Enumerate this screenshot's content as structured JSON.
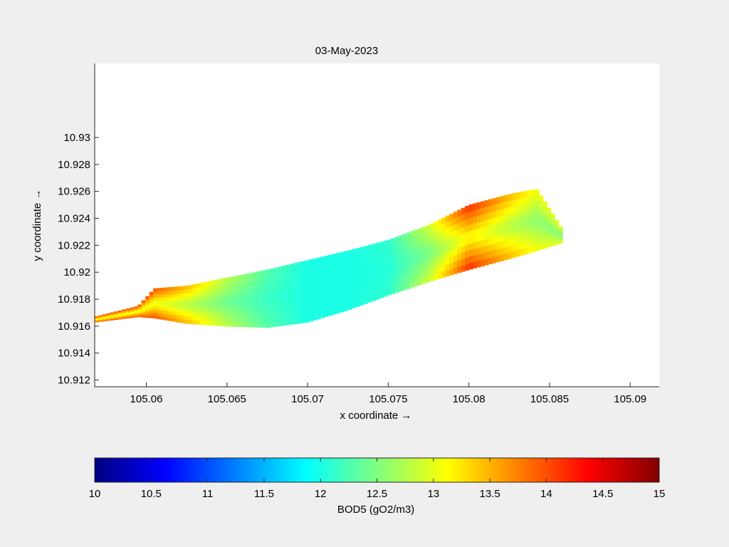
{
  "chart_data": {
    "type": "heatmap",
    "title": "03-May-2023",
    "xlabel": "x coordinate →",
    "ylabel": "y coordinate →",
    "xlim": [
      105.0568,
      105.0918
    ],
    "ylim": [
      10.9115,
      10.9355
    ],
    "x_ticks": [
      {
        "value": 105.06,
        "label": "105.06"
      },
      {
        "value": 105.065,
        "label": "105.065"
      },
      {
        "value": 105.07,
        "label": "105.07"
      },
      {
        "value": 105.075,
        "label": "105.075"
      },
      {
        "value": 105.08,
        "label": "105.08"
      },
      {
        "value": 105.085,
        "label": "105.085"
      },
      {
        "value": 105.09,
        "label": "105.09"
      }
    ],
    "y_ticks": [
      {
        "value": 10.912,
        "label": "10.912"
      },
      {
        "value": 10.914,
        "label": "10.914"
      },
      {
        "value": 10.916,
        "label": "10.916"
      },
      {
        "value": 10.918,
        "label": "10.918"
      },
      {
        "value": 10.92,
        "label": "10.92"
      },
      {
        "value": 10.922,
        "label": "10.922"
      },
      {
        "value": 10.924,
        "label": "10.924"
      },
      {
        "value": 10.926,
        "label": "10.926"
      },
      {
        "value": 10.928,
        "label": "10.928"
      },
      {
        "value": 10.93,
        "label": "10.93"
      }
    ],
    "grid": false,
    "colormap": "jet",
    "colorbar": {
      "label": "BOD5 (gO2/m3)",
      "range": [
        10,
        15
      ],
      "ticks": [
        {
          "value": 10,
          "label": "10"
        },
        {
          "value": 10.5,
          "label": "10.5"
        },
        {
          "value": 11,
          "label": "11"
        },
        {
          "value": 11.5,
          "label": "11.5"
        },
        {
          "value": 12,
          "label": "12"
        },
        {
          "value": 12.5,
          "label": "12.5"
        },
        {
          "value": 13,
          "label": "13"
        },
        {
          "value": 13.5,
          "label": "13.5"
        },
        {
          "value": 14,
          "label": "14"
        },
        {
          "value": 14.5,
          "label": "14.5"
        },
        {
          "value": 15,
          "label": "15"
        }
      ]
    },
    "field": {
      "value_unit": "gO2/m3",
      "profile": [
        {
          "x": 105.0568,
          "y_low": 10.9163,
          "y_high": 10.9167,
          "value": 14.0
        },
        {
          "x": 105.0595,
          "y_low": 10.9167,
          "y_high": 10.9175,
          "value": 14.0
        },
        {
          "x": 105.0605,
          "y_low": 10.9166,
          "y_high": 10.9188,
          "value": 14.0
        },
        {
          "x": 105.0625,
          "y_low": 10.9162,
          "y_high": 10.919,
          "value": 13.5
        },
        {
          "x": 105.065,
          "y_low": 10.916,
          "y_high": 10.9196,
          "value": 12.8
        },
        {
          "x": 105.0675,
          "y_low": 10.9159,
          "y_high": 10.9202,
          "value": 12.3
        },
        {
          "x": 105.07,
          "y_low": 10.9163,
          "y_high": 10.9209,
          "value": 12.0
        },
        {
          "x": 105.0725,
          "y_low": 10.9172,
          "y_high": 10.9216,
          "value": 12.0
        },
        {
          "x": 105.075,
          "y_low": 10.9183,
          "y_high": 10.9224,
          "value": 12.1
        },
        {
          "x": 105.0775,
          "y_low": 10.9193,
          "y_high": 10.9235,
          "value": 12.9
        },
        {
          "x": 105.08,
          "y_low": 10.9202,
          "y_high": 10.925,
          "value": 14.2
        },
        {
          "x": 105.0825,
          "y_low": 10.921,
          "y_high": 10.9258,
          "value": 13.5
        },
        {
          "x": 105.0842,
          "y_low": 10.9216,
          "y_high": 10.9262,
          "value": 13.1
        },
        {
          "x": 105.0858,
          "y_low": 10.9222,
          "y_high": 10.9232,
          "value": 13.0
        }
      ]
    }
  }
}
